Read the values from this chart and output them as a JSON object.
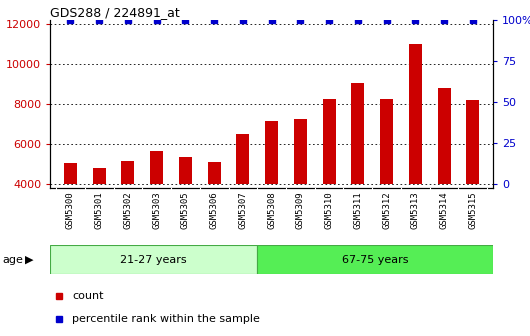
{
  "title": "GDS288 / 224891_at",
  "categories": [
    "GSM5300",
    "GSM5301",
    "GSM5302",
    "GSM5303",
    "GSM5305",
    "GSM5306",
    "GSM5307",
    "GSM5308",
    "GSM5309",
    "GSM5310",
    "GSM5311",
    "GSM5312",
    "GSM5313",
    "GSM5314",
    "GSM5315"
  ],
  "bar_values": [
    5050,
    4800,
    5150,
    5650,
    5350,
    5100,
    6500,
    7150,
    7250,
    8250,
    9050,
    8250,
    11000,
    8800,
    8200
  ],
  "percentile_values": [
    100,
    100,
    100,
    100,
    100,
    100,
    100,
    100,
    100,
    100,
    100,
    100,
    100,
    100,
    100
  ],
  "bar_color": "#cc0000",
  "percentile_color": "#0000cc",
  "ylim_left": [
    3800,
    12200
  ],
  "ylim_right": [
    -2.38,
    100
  ],
  "yticks_left": [
    4000,
    6000,
    8000,
    10000,
    12000
  ],
  "yticks_right": [
    0,
    25,
    50,
    75,
    100
  ],
  "ytick_right_labels": [
    "0",
    "25",
    "50",
    "75",
    "100%"
  ],
  "group1_label": "21-27 years",
  "group2_label": "67-75 years",
  "group1_count": 7,
  "age_label": "age",
  "plot_bg_color": "#ffffff",
  "xtick_bg_color": "#d0d0d0",
  "group1_color": "#ccffcc",
  "group2_color": "#55ee55",
  "legend_count": "count",
  "legend_percentile": "percentile rank within the sample"
}
